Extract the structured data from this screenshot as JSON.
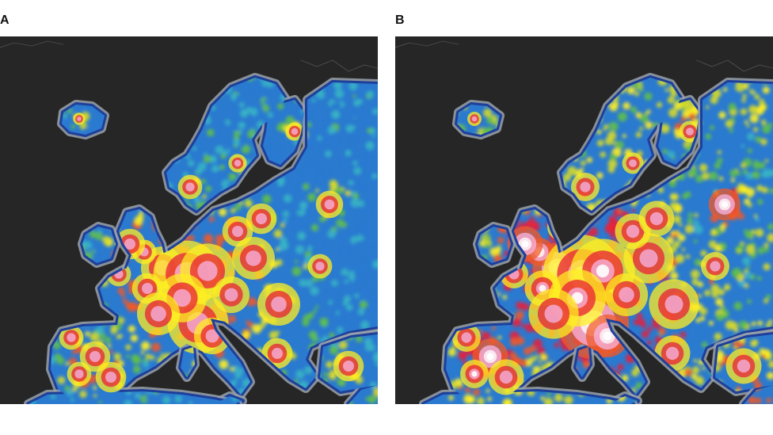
{
  "panels": [
    {
      "label": "A",
      "scenario": "lower",
      "brightness_level": 0.55
    },
    {
      "label": "B",
      "scenario": "higher",
      "brightness_level": 0.85
    }
  ],
  "colors": {
    "background": "#262626",
    "coast_halo": "#9aa3ad",
    "scale": [
      "#1e3f9a",
      "#2a7ad0",
      "#39b3c4",
      "#5fbf4a",
      "#d6d92a",
      "#ffee22",
      "#f05a28",
      "#e8203a",
      "#f7b6e6",
      "#ffffff"
    ]
  }
}
